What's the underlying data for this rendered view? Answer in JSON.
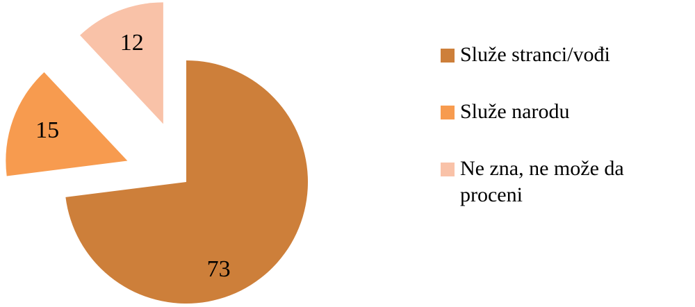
{
  "chart_data": {
    "type": "pie",
    "categories": [
      "Služe stranci/vođi",
      "Služe narodu",
      "Ne zna, ne može da proceni"
    ],
    "values": [
      73,
      15,
      12
    ],
    "colors": [
      "#cd7f3a",
      "#f79b4f",
      "#f9c2a8"
    ]
  }
}
